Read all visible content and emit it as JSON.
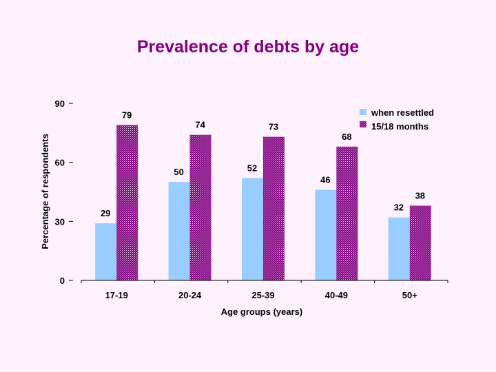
{
  "chart_data": {
    "type": "bar",
    "title": "Prevalence of debts by age",
    "xlabel": "Age groups (years)",
    "ylabel": "Percentage of respondents",
    "categories": [
      "17-19",
      "20-24",
      "25-39",
      "40-49",
      "50+"
    ],
    "ylim": [
      0,
      90
    ],
    "yticks": [
      "0",
      "30",
      "60",
      "90"
    ],
    "legend_position": "top-right",
    "series": [
      {
        "name": "when resettled",
        "values": [
          29,
          50,
          52,
          46,
          32
        ],
        "labels": [
          "29",
          "50",
          "52",
          "46",
          "32"
        ],
        "color": "#99ccff"
      },
      {
        "name": "15/18 months",
        "values": [
          79,
          74,
          73,
          68,
          38
        ],
        "labels": [
          "79",
          "74",
          "73",
          "68",
          "38"
        ],
        "color": "#800080"
      }
    ]
  },
  "colors": {
    "title": "#800080",
    "background": "#fdf1fd"
  }
}
